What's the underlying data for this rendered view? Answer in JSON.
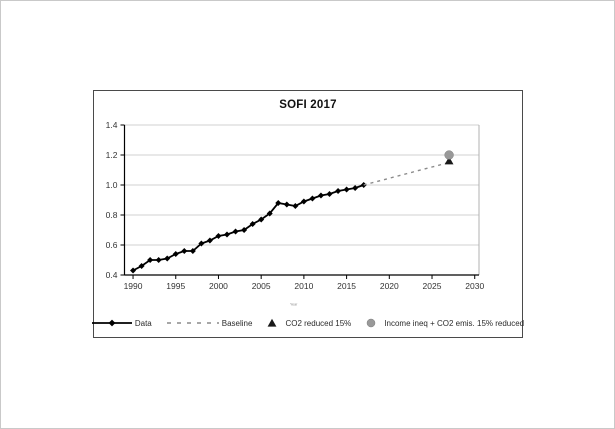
{
  "window": {
    "background": "#ffffff"
  },
  "chart_data": {
    "type": "line",
    "title": "SOFI 2017",
    "x_axis_title": "Year",
    "xlim": [
      1989,
      2030.5
    ],
    "ylim": [
      0.4,
      1.4
    ],
    "x_ticks": [
      1990,
      1995,
      2000,
      2005,
      2010,
      2015,
      2020,
      2025,
      2030
    ],
    "y_ticks": [
      0.4,
      0.6,
      0.8,
      1.0,
      1.2,
      1.4
    ],
    "grid": "horizontal",
    "legend_position": "bottom",
    "colors": {
      "data_series": "#000000",
      "baseline_series": "#8a8a8a",
      "co2_marker": "#1a1a1a",
      "income_marker": "#999999",
      "gridline": "#d0d0d0",
      "axis": "#000000",
      "plot_right_border": "#b0b0b0"
    },
    "series": [
      {
        "name": "Data",
        "type": "line",
        "marker": "diamond",
        "dash": "solid",
        "color": "#000000",
        "width": 1.8,
        "x": [
          1990,
          1991,
          1992,
          1993,
          1994,
          1995,
          1996,
          1997,
          1998,
          1999,
          2000,
          2001,
          2002,
          2003,
          2004,
          2005,
          2006,
          2007,
          2008,
          2009,
          2010,
          2011,
          2012,
          2013,
          2014,
          2015,
          2016,
          2017
        ],
        "y": [
          0.43,
          0.46,
          0.5,
          0.5,
          0.51,
          0.54,
          0.56,
          0.56,
          0.61,
          0.63,
          0.66,
          0.67,
          0.69,
          0.7,
          0.74,
          0.77,
          0.81,
          0.88,
          0.87,
          0.86,
          0.89,
          0.91,
          0.93,
          0.94,
          0.96,
          0.97,
          0.98,
          1.0
        ]
      },
      {
        "name": "Baseline",
        "type": "line",
        "marker": "none",
        "dash": "dashed",
        "color": "#8a8a8a",
        "width": 1.4,
        "x": [
          2017,
          2018,
          2019,
          2020,
          2021,
          2022,
          2023,
          2024,
          2025,
          2026,
          2027
        ],
        "y": [
          1.0,
          1.015,
          1.03,
          1.045,
          1.06,
          1.075,
          1.09,
          1.105,
          1.12,
          1.135,
          1.15
        ]
      },
      {
        "name": "CO2 reduced 15%",
        "type": "scatter",
        "marker": "triangle",
        "dash": "none",
        "color": "#1a1a1a",
        "x": [
          2027
        ],
        "y": [
          1.16
        ]
      },
      {
        "name": "Income ineq + CO2 emis. 15% reduced",
        "type": "scatter",
        "marker": "circle",
        "dash": "none",
        "color": "#999999",
        "x": [
          2027
        ],
        "y": [
          1.2
        ]
      }
    ]
  }
}
